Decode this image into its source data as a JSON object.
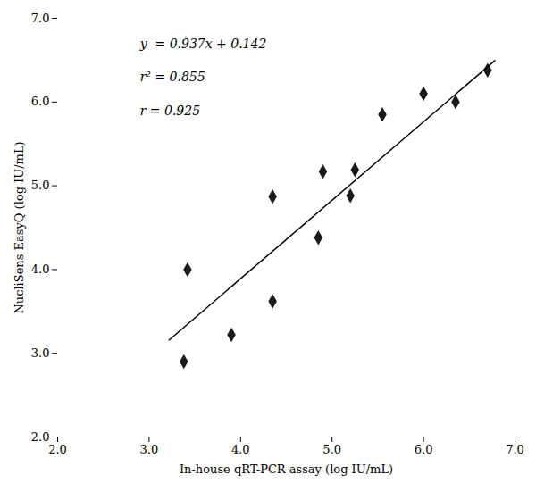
{
  "chart_data": {
    "type": "scatter",
    "xlabel": "In-house qRT-PCR assay (log IU/mL)",
    "ylabel": "NucliSens EasyQ (log IU/mL)",
    "xlim": [
      2,
      7
    ],
    "ylim": [
      2,
      7
    ],
    "xticks": [
      2,
      3,
      4,
      5,
      6,
      7
    ],
    "yticks": [
      2,
      3,
      4,
      5,
      6,
      7
    ],
    "grid": false,
    "annotations": [
      "y  = 0.937x + 0.142",
      "r² = 0.855",
      "r = 0.925"
    ],
    "series": [
      {
        "type": "scatter",
        "marker": "diamond",
        "color": "#1a1a1a",
        "x": [
          3.38,
          3.42,
          3.9,
          4.35,
          4.35,
          4.85,
          4.9,
          5.2,
          5.25,
          5.55,
          6.0,
          6.35,
          6.7
        ],
        "values": [
          2.9,
          4.0,
          3.22,
          3.62,
          4.87,
          4.38,
          5.17,
          4.88,
          5.19,
          5.85,
          6.1,
          6.0,
          6.38
        ]
      },
      {
        "type": "line",
        "line_style": "solid",
        "color": "#000000",
        "x": [
          3.22,
          6.78
        ],
        "values": [
          3.15914,
          6.49486
        ]
      }
    ]
  }
}
